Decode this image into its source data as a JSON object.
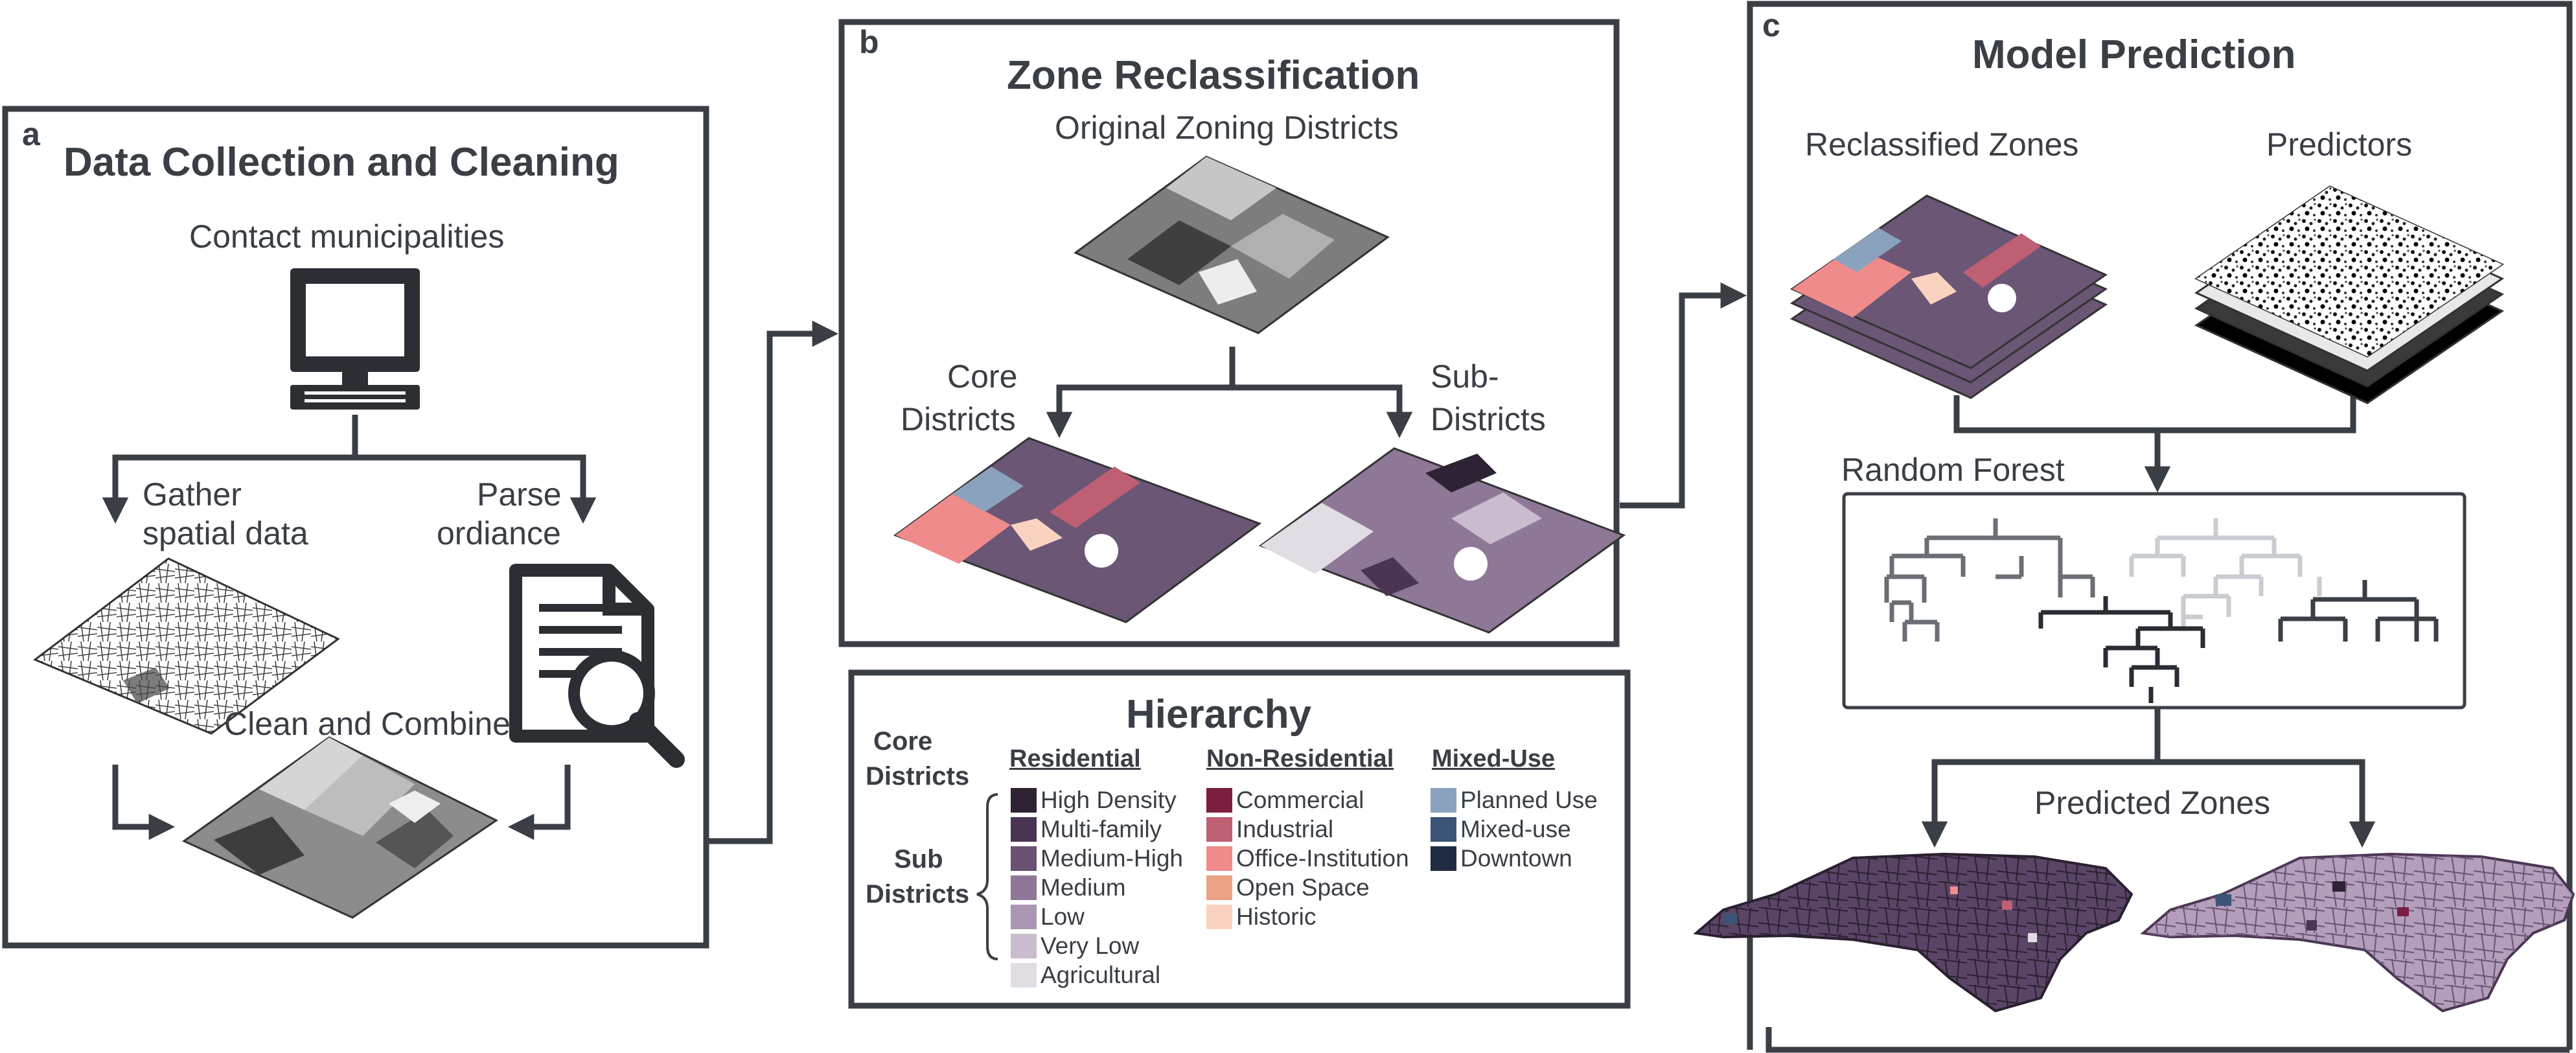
{
  "panel_a": {
    "letter": "a",
    "title": "Data Collection and Cleaning",
    "contact": "Contact municipalities",
    "gather": [
      "Gather",
      "spatial data"
    ],
    "parse": [
      "Parse",
      "ordiance"
    ],
    "clean": "Clean and Combine"
  },
  "panel_b": {
    "letter": "b",
    "title": "Zone Reclassification",
    "original": "Original Zoning Districts",
    "core": [
      "Core",
      "Districts"
    ],
    "sub": [
      "Sub-",
      "Districts"
    ]
  },
  "panel_c": {
    "letter": "c",
    "title": "Model Prediction",
    "reclassified": "Reclassified Zones",
    "predictors": "Predictors",
    "random_forest": "Random Forest",
    "predicted": "Predicted Zones"
  },
  "hierarchy": {
    "title": "Hierarchy",
    "core_label": [
      "Core",
      "Districts"
    ],
    "sub_label": [
      "Sub",
      "Districts"
    ],
    "groups": [
      {
        "name": "Residential",
        "items": [
          {
            "label": "High Density",
            "color": "#2e2235"
          },
          {
            "label": "Multi-family",
            "color": "#4a3552"
          },
          {
            "label": "Medium-High",
            "color": "#6a5274"
          },
          {
            "label": "Medium",
            "color": "#8f7897"
          },
          {
            "label": "Low",
            "color": "#ab97b3"
          },
          {
            "label": "Very Low",
            "color": "#c9bccf"
          },
          {
            "label": "Agricultural",
            "color": "#e2dde5"
          }
        ]
      },
      {
        "name": "Non-Residential",
        "items": [
          {
            "label": "Commercial",
            "color": "#7b1f40"
          },
          {
            "label": "Industrial",
            "color": "#bf5f74"
          },
          {
            "label": "Office-Institution",
            "color": "#f08b8b"
          },
          {
            "label": "Open Space",
            "color": "#e8a384"
          },
          {
            "label": "Historic",
            "color": "#fad3c0"
          }
        ]
      },
      {
        "name": "Mixed-Use",
        "items": [
          {
            "label": "Planned Use",
            "color": "#8aa2bd"
          },
          {
            "label": "Mixed-use",
            "color": "#3b5477"
          },
          {
            "label": "Downtown",
            "color": "#1f2b40"
          }
        ]
      }
    ]
  },
  "colors": {
    "frame": "#3a3e45",
    "base_purple": "#6b5676",
    "commercial": "#7b1f40",
    "office": "#f08b8b"
  }
}
